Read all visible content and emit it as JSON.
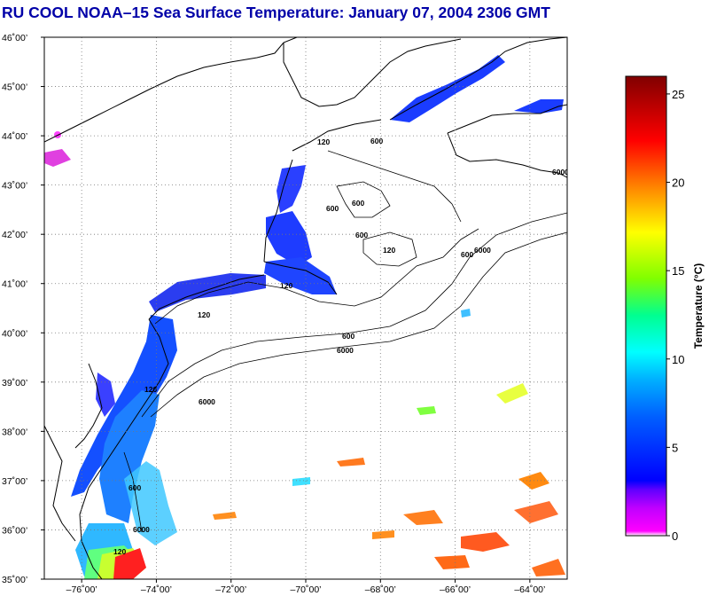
{
  "title": "RU COOL  NOAA–15  Sea Surface Temperature:  January 07, 2004 2306 GMT",
  "map": {
    "lat_ticks": [
      "46˚00’",
      "45˚00’",
      "44˚00’",
      "43˚00’",
      "42˚00’",
      "41˚00’",
      "40˚00’",
      "39˚00’",
      "38˚00’",
      "37˚00’",
      "36˚00’",
      "35˚00’"
    ],
    "lon_ticks": [
      "–76˚00’",
      "–74˚00’",
      "–72˚00’",
      "–70˚00’",
      "–68˚00’",
      "–66˚00’",
      "–64˚00’"
    ],
    "lat_range": [
      35,
      46
    ],
    "lon_range": [
      -77,
      -63
    ],
    "contour_labels": [
      "120",
      "600",
      "6000"
    ],
    "land_color": "#ffffff",
    "coast_color": "#000000"
  },
  "colorbar": {
    "title": "Temperature (°C)",
    "ticks": [
      "0",
      "5",
      "10",
      "15",
      "20",
      "25"
    ],
    "range": [
      0,
      26
    ],
    "colors": [
      "#ff00ff",
      "#8000ff",
      "#0000ff",
      "#0080ff",
      "#00ffff",
      "#00ff80",
      "#80ff00",
      "#ffff00",
      "#ff8000",
      "#ff0000",
      "#800000"
    ]
  }
}
